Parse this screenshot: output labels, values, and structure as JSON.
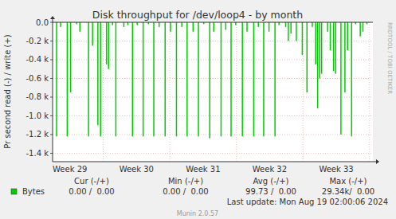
{
  "chart_data": {
    "type": "bar",
    "title": "Disk throughput for /dev/loop4 - by month",
    "y_label": "Pr second read (-) / write (+)",
    "x": [
      29.3,
      29.36,
      29.46,
      29.51,
      29.6,
      29.65,
      29.78,
      29.84,
      29.92,
      29.96,
      30.05,
      30.08,
      30.14,
      30.19,
      30.31,
      30.37,
      30.44,
      30.51,
      30.6,
      30.68,
      30.76,
      30.84,
      30.93,
      31.01,
      31.1,
      31.18,
      31.26,
      31.35,
      31.43,
      31.51,
      31.6,
      31.66,
      31.77,
      31.84,
      31.92,
      31.99,
      32.09,
      32.16,
      32.26,
      32.33,
      32.41,
      32.49,
      32.58,
      32.64,
      32.74,
      32.78,
      32.82,
      32.9,
      32.99,
      33.06,
      33.14,
      33.19,
      33.22,
      33.25,
      33.28,
      33.37,
      33.41,
      33.46,
      33.49,
      33.57,
      33.63,
      33.67,
      33.73,
      33.79,
      33.86,
      33.9,
      33.96
    ],
    "series": [
      {
        "name": "Bytes",
        "color": "#00cc00",
        "values": [
          -1220,
          -50,
          -1220,
          -750,
          -20,
          -100,
          -1220,
          -250,
          -1100,
          -1220,
          -450,
          -500,
          -30,
          -1220,
          -50,
          -30,
          -1220,
          -30,
          -1220,
          -20,
          -1220,
          -50,
          -1220,
          -100,
          -1220,
          -50,
          -1220,
          -100,
          -1220,
          -20,
          -1240,
          -100,
          -1220,
          -80,
          -1220,
          -30,
          -1220,
          -100,
          -1220,
          -50,
          -1220,
          -100,
          -1220,
          -30,
          -50,
          -200,
          -120,
          -200,
          -350,
          -750,
          -50,
          -450,
          -920,
          -600,
          -550,
          -100,
          -300,
          -520,
          -550,
          -1200,
          -750,
          -300,
          -1220,
          -20,
          -150,
          -100,
          -20
        ]
      }
    ],
    "xlim": [
      29.24,
      34.05
    ],
    "xticks": [
      {
        "value": 29.5,
        "label": "Week 29"
      },
      {
        "value": 30.5,
        "label": "Week 30"
      },
      {
        "value": 31.5,
        "label": "Week 31"
      },
      {
        "value": 32.5,
        "label": "Week 32"
      },
      {
        "value": 33.5,
        "label": "Week 33"
      }
    ],
    "ylim": [
      -1490,
      0
    ],
    "yticks": [
      {
        "value": 0,
        "label": "0.0"
      },
      {
        "value": -200,
        "label": "-0.2 k"
      },
      {
        "value": -400,
        "label": "-0.4 k"
      },
      {
        "value": -600,
        "label": "-0.6 k"
      },
      {
        "value": -800,
        "label": "-0.8 k"
      },
      {
        "value": -1000,
        "label": "-1.0 k"
      },
      {
        "value": -1200,
        "label": "-1.2 k"
      },
      {
        "value": -1400,
        "label": "-1.4 k"
      }
    ],
    "grid": true,
    "legend_table": {
      "headers": [
        "Cur (-/+)",
        "Min (-/+)",
        "Avg (-/+)",
        "Max (-/+)"
      ],
      "values": [
        "0.00 /  0.00",
        "0.00 /  0.00",
        "99.73 /  0.00",
        "29.34k/  0.00"
      ]
    },
    "footer": "Last update: Mon Aug 19 02:00:06 2024",
    "credit": "Munin 2.0.57",
    "watermark": "RRDTOOL / TOBI OETIKER"
  }
}
